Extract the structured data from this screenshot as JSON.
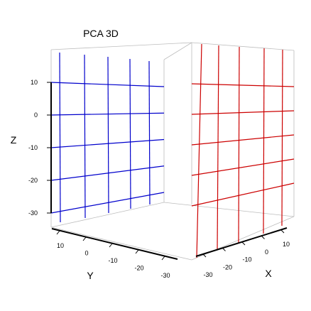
{
  "chart_data": {
    "type": "scatter3d",
    "title": "PCA 3D",
    "xlabel": "X",
    "ylabel": "Y",
    "zlabel": "Z",
    "x_ticks": [
      -30,
      -20,
      -10,
      0,
      10
    ],
    "y_ticks": [
      10,
      0,
      -10,
      -20,
      -30
    ],
    "z_ticks": [
      10,
      0,
      -10,
      -20,
      -30
    ],
    "zlim": [
      -30,
      10
    ],
    "grid": true,
    "panel_colors": {
      "yz_wall": "#0000cc",
      "xz_wall": "#cc0000"
    }
  }
}
